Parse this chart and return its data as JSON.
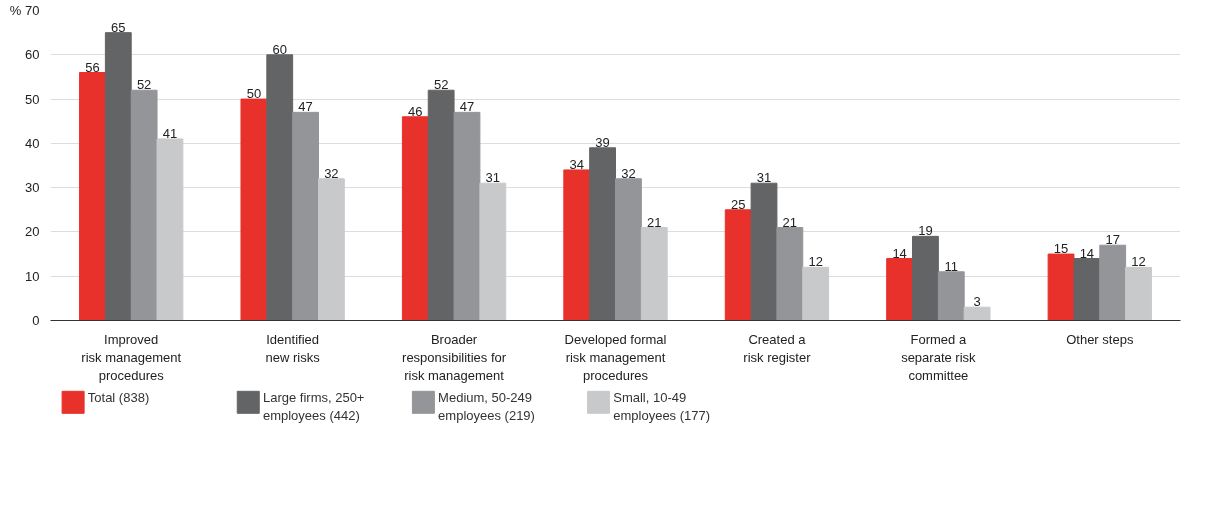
{
  "chart_data": {
    "type": "bar",
    "categories": [
      "Improved\nrisk management\nprocedures",
      "Identified\nnew risks",
      "Broader\nresponsibilities for\nrisk management",
      "Developed formal\nrisk management\nprocedures",
      "Created a\nrisk register",
      "Formed a\nseparate risk\ncommittee",
      "Other steps"
    ],
    "series": [
      {
        "name": "Total (838)",
        "color": "#e8312a",
        "values": [
          56,
          50,
          46,
          34,
          25,
          14,
          15
        ]
      },
      {
        "name": "Large firms, 250+\nemployees (442)",
        "color": "#636466",
        "values": [
          65,
          60,
          52,
          39,
          31,
          19,
          14
        ]
      },
      {
        "name": "Medium, 50-249\nemployees (219)",
        "color": "#949598",
        "values": [
          52,
          47,
          47,
          32,
          21,
          11,
          17
        ]
      },
      {
        "name": "Small, 10-49\nemployees (177)",
        "color": "#c8c9cb",
        "values": [
          41,
          32,
          31,
          21,
          12,
          3,
          12
        ]
      }
    ],
    "ylim": [
      0,
      70
    ],
    "yticks": [
      0,
      10,
      20,
      30,
      40,
      50,
      60,
      {
        "value": 70,
        "label": "% 70"
      }
    ],
    "grid": "y",
    "legend": "bottom",
    "data_labels": true
  }
}
